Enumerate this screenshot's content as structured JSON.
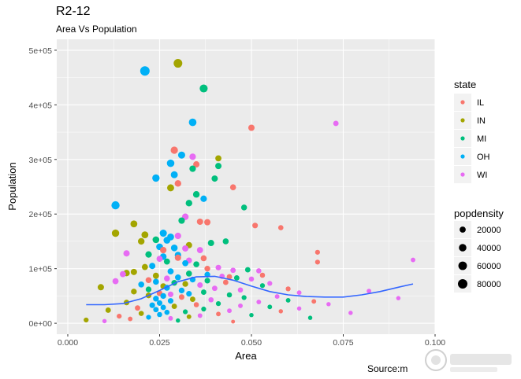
{
  "header": {
    "title": "R2-12",
    "subtitle": "Area Vs Population",
    "caption": "Source:m"
  },
  "chart_data": {
    "type": "scatter",
    "title": "R2-12",
    "subtitle": "Area Vs Population",
    "xlabel": "Area",
    "ylabel": "Population",
    "xlim": [
      -0.003,
      0.1
    ],
    "ylim": [
      -20000,
      520000
    ],
    "x_ticks": [
      0.0,
      0.025,
      0.05,
      0.075,
      0.1
    ],
    "x_tick_labels": [
      "0.000",
      "0.025",
      "0.050",
      "0.075",
      "0.100"
    ],
    "y_ticks": [
      0,
      100000,
      200000,
      300000,
      400000,
      500000
    ],
    "y_tick_labels": [
      "0e+00",
      "1e+05",
      "2e+05",
      "3e+05",
      "4e+05",
      "5e+05"
    ],
    "grid": true,
    "legend_color": {
      "title": "state",
      "placement": "right",
      "entries": [
        {
          "label": "IL",
          "color": "#F8766D"
        },
        {
          "label": "IN",
          "color": "#A3A500"
        },
        {
          "label": "MI",
          "color": "#00BF7D"
        },
        {
          "label": "OH",
          "color": "#00B0F6"
        },
        {
          "label": "WI",
          "color": "#E76BF3"
        }
      ]
    },
    "legend_size": {
      "title": "popdensity",
      "entries": [
        {
          "label": "20000",
          "value": 20000
        },
        {
          "label": "40000",
          "value": 40000
        },
        {
          "label": "60000",
          "value": 60000
        },
        {
          "label": "80000",
          "value": 80000
        }
      ]
    },
    "smooth": {
      "color": "#3366FF",
      "x": [
        0.005,
        0.01,
        0.015,
        0.02,
        0.025,
        0.03,
        0.035,
        0.04,
        0.045,
        0.05,
        0.055,
        0.06,
        0.065,
        0.07,
        0.075,
        0.08,
        0.085,
        0.09,
        0.094
      ],
      "y": [
        34000,
        34000,
        36000,
        45000,
        60000,
        76000,
        85000,
        86000,
        79000,
        68000,
        58000,
        52000,
        49000,
        48000,
        48000,
        52000,
        58000,
        66000,
        72000
      ]
    },
    "points": [
      {
        "state": "IN",
        "x": 0.03,
        "y": 476000,
        "d": 62000
      },
      {
        "state": "OH",
        "x": 0.021,
        "y": 462000,
        "d": 80000
      },
      {
        "state": "MI",
        "x": 0.037,
        "y": 430000,
        "d": 48000
      },
      {
        "state": "OH",
        "x": 0.034,
        "y": 368000,
        "d": 42000
      },
      {
        "state": "WI",
        "x": 0.073,
        "y": 366000,
        "d": 12000
      },
      {
        "state": "IL",
        "x": 0.05,
        "y": 358000,
        "d": 22000
      },
      {
        "state": "IL",
        "x": 0.029,
        "y": 317000,
        "d": 36000
      },
      {
        "state": "OH",
        "x": 0.031,
        "y": 308000,
        "d": 33000
      },
      {
        "state": "WI",
        "x": 0.034,
        "y": 305000,
        "d": 24000
      },
      {
        "state": "IN",
        "x": 0.041,
        "y": 302000,
        "d": 20000
      },
      {
        "state": "OH",
        "x": 0.028,
        "y": 293000,
        "d": 40000
      },
      {
        "state": "IL",
        "x": 0.035,
        "y": 291000,
        "d": 22000
      },
      {
        "state": "MI",
        "x": 0.041,
        "y": 288000,
        "d": 22000
      },
      {
        "state": "MI",
        "x": 0.034,
        "y": 283000,
        "d": 24000
      },
      {
        "state": "OH",
        "x": 0.029,
        "y": 272000,
        "d": 32000
      },
      {
        "state": "OH",
        "x": 0.024,
        "y": 266000,
        "d": 38000
      },
      {
        "state": "MI",
        "x": 0.04,
        "y": 265000,
        "d": 22000
      },
      {
        "state": "IL",
        "x": 0.03,
        "y": 256000,
        "d": 26000
      },
      {
        "state": "IL",
        "x": 0.045,
        "y": 249000,
        "d": 18000
      },
      {
        "state": "IN",
        "x": 0.028,
        "y": 248000,
        "d": 32000
      },
      {
        "state": "MI",
        "x": 0.035,
        "y": 236000,
        "d": 26000
      },
      {
        "state": "OH",
        "x": 0.037,
        "y": 228000,
        "d": 24000
      },
      {
        "state": "MI",
        "x": 0.033,
        "y": 220000,
        "d": 26000
      },
      {
        "state": "OH",
        "x": 0.013,
        "y": 216000,
        "d": 52000
      },
      {
        "state": "MI",
        "x": 0.048,
        "y": 212000,
        "d": 17000
      },
      {
        "state": "WI",
        "x": 0.032,
        "y": 195000,
        "d": 26000
      },
      {
        "state": "MI",
        "x": 0.031,
        "y": 188000,
        "d": 24000
      },
      {
        "state": "IL",
        "x": 0.036,
        "y": 186000,
        "d": 22000
      },
      {
        "state": "IL",
        "x": 0.038,
        "y": 185000,
        "d": 22000
      },
      {
        "state": "IN",
        "x": 0.018,
        "y": 182000,
        "d": 30000
      },
      {
        "state": "IL",
        "x": 0.051,
        "y": 179000,
        "d": 14000
      },
      {
        "state": "IL",
        "x": 0.058,
        "y": 175000,
        "d": 10000
      },
      {
        "state": "IN",
        "x": 0.013,
        "y": 165000,
        "d": 38000
      },
      {
        "state": "OH",
        "x": 0.026,
        "y": 165000,
        "d": 34000
      },
      {
        "state": "IN",
        "x": 0.021,
        "y": 162000,
        "d": 30000
      },
      {
        "state": "WI",
        "x": 0.03,
        "y": 160000,
        "d": 24000
      },
      {
        "state": "OH",
        "x": 0.028,
        "y": 158000,
        "d": 30000
      },
      {
        "state": "MI",
        "x": 0.024,
        "y": 153000,
        "d": 28000
      },
      {
        "state": "OH",
        "x": 0.027,
        "y": 152000,
        "d": 30000
      },
      {
        "state": "IN",
        "x": 0.02,
        "y": 150000,
        "d": 26000
      },
      {
        "state": "MI",
        "x": 0.043,
        "y": 150000,
        "d": 18000
      },
      {
        "state": "MI",
        "x": 0.039,
        "y": 147000,
        "d": 22000
      },
      {
        "state": "IN",
        "x": 0.033,
        "y": 143000,
        "d": 22000
      },
      {
        "state": "OH",
        "x": 0.025,
        "y": 140000,
        "d": 28000
      },
      {
        "state": "OH",
        "x": 0.029,
        "y": 138000,
        "d": 28000
      },
      {
        "state": "WI",
        "x": 0.032,
        "y": 137000,
        "d": 22000
      },
      {
        "state": "IL",
        "x": 0.026,
        "y": 134000,
        "d": 24000
      },
      {
        "state": "WI",
        "x": 0.036,
        "y": 134000,
        "d": 20000
      },
      {
        "state": "IL",
        "x": 0.068,
        "y": 130000,
        "d": 8000
      },
      {
        "state": "WI",
        "x": 0.016,
        "y": 128000,
        "d": 22000
      },
      {
        "state": "MI",
        "x": 0.022,
        "y": 126000,
        "d": 24000
      },
      {
        "state": "OH",
        "x": 0.03,
        "y": 125000,
        "d": 24000
      },
      {
        "state": "OH",
        "x": 0.026,
        "y": 122000,
        "d": 26000
      },
      {
        "state": "IL",
        "x": 0.03,
        "y": 120000,
        "d": 22000
      },
      {
        "state": "IL",
        "x": 0.037,
        "y": 119000,
        "d": 18000
      },
      {
        "state": "WI",
        "x": 0.025,
        "y": 118000,
        "d": 20000
      },
      {
        "state": "WI",
        "x": 0.094,
        "y": 116000,
        "d": 6000
      },
      {
        "state": "WI",
        "x": 0.033,
        "y": 115000,
        "d": 18000
      },
      {
        "state": "MI",
        "x": 0.027,
        "y": 113000,
        "d": 20000
      },
      {
        "state": "IL",
        "x": 0.068,
        "y": 112000,
        "d": 8000
      },
      {
        "state": "OH",
        "x": 0.032,
        "y": 110000,
        "d": 20000
      },
      {
        "state": "MI",
        "x": 0.035,
        "y": 108000,
        "d": 18000
      },
      {
        "state": "OH",
        "x": 0.023,
        "y": 105000,
        "d": 22000
      },
      {
        "state": "IN",
        "x": 0.021,
        "y": 103000,
        "d": 20000
      },
      {
        "state": "WI",
        "x": 0.041,
        "y": 102000,
        "d": 14000
      },
      {
        "state": "IL",
        "x": 0.038,
        "y": 100000,
        "d": 16000
      },
      {
        "state": "MI",
        "x": 0.049,
        "y": 98000,
        "d": 12000
      },
      {
        "state": "WI",
        "x": 0.045,
        "y": 97000,
        "d": 12000
      },
      {
        "state": "WI",
        "x": 0.052,
        "y": 96000,
        "d": 10000
      },
      {
        "state": "OH",
        "x": 0.028,
        "y": 95000,
        "d": 20000
      },
      {
        "state": "IN",
        "x": 0.018,
        "y": 94000,
        "d": 22000
      },
      {
        "state": "IN",
        "x": 0.016,
        "y": 92000,
        "d": 24000
      },
      {
        "state": "MI",
        "x": 0.033,
        "y": 91000,
        "d": 18000
      },
      {
        "state": "WI",
        "x": 0.015,
        "y": 90000,
        "d": 20000
      },
      {
        "state": "OH",
        "x": 0.038,
        "y": 89000,
        "d": 16000
      },
      {
        "state": "IL",
        "x": 0.053,
        "y": 88000,
        "d": 10000
      },
      {
        "state": "IN",
        "x": 0.024,
        "y": 87000,
        "d": 20000
      },
      {
        "state": "WI",
        "x": 0.042,
        "y": 86000,
        "d": 12000
      },
      {
        "state": "IL",
        "x": 0.044,
        "y": 85000,
        "d": 12000
      },
      {
        "state": "OH",
        "x": 0.03,
        "y": 84000,
        "d": 18000
      },
      {
        "state": "MI",
        "x": 0.046,
        "y": 83000,
        "d": 12000
      },
      {
        "state": "WI",
        "x": 0.027,
        "y": 82000,
        "d": 18000
      },
      {
        "state": "WI",
        "x": 0.05,
        "y": 81000,
        "d": 10000
      },
      {
        "state": "OH",
        "x": 0.034,
        "y": 80000,
        "d": 16000
      },
      {
        "state": "IL",
        "x": 0.022,
        "y": 79000,
        "d": 18000
      },
      {
        "state": "MI",
        "x": 0.038,
        "y": 78000,
        "d": 14000
      },
      {
        "state": "WI",
        "x": 0.013,
        "y": 77000,
        "d": 20000
      },
      {
        "state": "OH",
        "x": 0.024,
        "y": 76000,
        "d": 18000
      },
      {
        "state": "IL",
        "x": 0.043,
        "y": 75000,
        "d": 12000
      },
      {
        "state": "MI",
        "x": 0.029,
        "y": 74000,
        "d": 16000
      },
      {
        "state": "WI",
        "x": 0.055,
        "y": 73000,
        "d": 8000
      },
      {
        "state": "IN",
        "x": 0.032,
        "y": 72000,
        "d": 16000
      },
      {
        "state": "OH",
        "x": 0.02,
        "y": 71000,
        "d": 18000
      },
      {
        "state": "WI",
        "x": 0.036,
        "y": 70000,
        "d": 14000
      },
      {
        "state": "MI",
        "x": 0.053,
        "y": 69000,
        "d": 8000
      },
      {
        "state": "IN",
        "x": 0.026,
        "y": 68000,
        "d": 16000
      },
      {
        "state": "IN",
        "x": 0.009,
        "y": 66000,
        "d": 22000
      },
      {
        "state": "OH",
        "x": 0.027,
        "y": 65000,
        "d": 18000
      },
      {
        "state": "WI",
        "x": 0.04,
        "y": 64000,
        "d": 12000
      },
      {
        "state": "IL",
        "x": 0.06,
        "y": 63000,
        "d": 8000
      },
      {
        "state": "MI",
        "x": 0.022,
        "y": 62000,
        "d": 16000
      },
      {
        "state": "WI",
        "x": 0.047,
        "y": 61000,
        "d": 10000
      },
      {
        "state": "OH",
        "x": 0.031,
        "y": 60000,
        "d": 16000
      },
      {
        "state": "WI",
        "x": 0.082,
        "y": 59000,
        "d": 6000
      },
      {
        "state": "IN",
        "x": 0.018,
        "y": 58000,
        "d": 16000
      },
      {
        "state": "MI",
        "x": 0.037,
        "y": 57000,
        "d": 12000
      },
      {
        "state": "WI",
        "x": 0.063,
        "y": 56000,
        "d": 6000
      },
      {
        "state": "IL",
        "x": 0.025,
        "y": 55000,
        "d": 16000
      },
      {
        "state": "OH",
        "x": 0.033,
        "y": 54000,
        "d": 14000
      },
      {
        "state": "WI",
        "x": 0.028,
        "y": 53000,
        "d": 14000
      },
      {
        "state": "MI",
        "x": 0.044,
        "y": 52000,
        "d": 10000
      },
      {
        "state": "IN",
        "x": 0.022,
        "y": 51000,
        "d": 16000
      },
      {
        "state": "OH",
        "x": 0.026,
        "y": 50000,
        "d": 16000
      },
      {
        "state": "WI",
        "x": 0.057,
        "y": 49000,
        "d": 6000
      },
      {
        "state": "IL",
        "x": 0.031,
        "y": 48000,
        "d": 14000
      },
      {
        "state": "MI",
        "x": 0.048,
        "y": 47000,
        "d": 8000
      },
      {
        "state": "WI",
        "x": 0.09,
        "y": 46000,
        "d": 4000
      },
      {
        "state": "OH",
        "x": 0.024,
        "y": 45000,
        "d": 16000
      },
      {
        "state": "IN",
        "x": 0.034,
        "y": 44000,
        "d": 12000
      },
      {
        "state": "WI",
        "x": 0.039,
        "y": 43000,
        "d": 10000
      },
      {
        "state": "MI",
        "x": 0.06,
        "y": 42000,
        "d": 6000
      },
      {
        "state": "OH",
        "x": 0.028,
        "y": 41000,
        "d": 14000
      },
      {
        "state": "IL",
        "x": 0.067,
        "y": 40000,
        "d": 6000
      },
      {
        "state": "WI",
        "x": 0.052,
        "y": 39000,
        "d": 6000
      },
      {
        "state": "IN",
        "x": 0.016,
        "y": 38000,
        "d": 14000
      },
      {
        "state": "OH",
        "x": 0.025,
        "y": 37000,
        "d": 14000
      },
      {
        "state": "MI",
        "x": 0.041,
        "y": 36000,
        "d": 8000
      },
      {
        "state": "WI",
        "x": 0.071,
        "y": 35000,
        "d": 4000
      },
      {
        "state": "IL",
        "x": 0.035,
        "y": 34000,
        "d": 10000
      },
      {
        "state": "OH",
        "x": 0.023,
        "y": 33000,
        "d": 14000
      },
      {
        "state": "WI",
        "x": 0.047,
        "y": 32000,
        "d": 6000
      },
      {
        "state": "IN",
        "x": 0.029,
        "y": 31000,
        "d": 12000
      },
      {
        "state": "MI",
        "x": 0.055,
        "y": 30000,
        "d": 6000
      },
      {
        "state": "OH",
        "x": 0.026,
        "y": 29000,
        "d": 12000
      },
      {
        "state": "IL",
        "x": 0.019,
        "y": 28000,
        "d": 12000
      },
      {
        "state": "WI",
        "x": 0.063,
        "y": 27000,
        "d": 4000
      },
      {
        "state": "MI",
        "x": 0.037,
        "y": 26000,
        "d": 8000
      },
      {
        "state": "OH",
        "x": 0.024,
        "y": 25000,
        "d": 12000
      },
      {
        "state": "IN",
        "x": 0.011,
        "y": 24000,
        "d": 12000
      },
      {
        "state": "WI",
        "x": 0.044,
        "y": 23000,
        "d": 6000
      },
      {
        "state": "IL",
        "x": 0.058,
        "y": 22000,
        "d": 4000
      },
      {
        "state": "MI",
        "x": 0.032,
        "y": 21000,
        "d": 8000
      },
      {
        "state": "OH",
        "x": 0.027,
        "y": 20000,
        "d": 10000
      },
      {
        "state": "WI",
        "x": 0.077,
        "y": 19000,
        "d": 4000
      },
      {
        "state": "IN",
        "x": 0.02,
        "y": 18000,
        "d": 10000
      },
      {
        "state": "IL",
        "x": 0.041,
        "y": 17000,
        "d": 6000
      },
      {
        "state": "OH",
        "x": 0.025,
        "y": 16000,
        "d": 10000
      },
      {
        "state": "MI",
        "x": 0.05,
        "y": 15000,
        "d": 4000
      },
      {
        "state": "WI",
        "x": 0.036,
        "y": 14000,
        "d": 6000
      },
      {
        "state": "IL",
        "x": 0.014,
        "y": 13000,
        "d": 8000
      },
      {
        "state": "IN",
        "x": 0.033,
        "y": 12000,
        "d": 6000
      },
      {
        "state": "OH",
        "x": 0.022,
        "y": 11000,
        "d": 8000
      },
      {
        "state": "MI",
        "x": 0.066,
        "y": 10000,
        "d": 4000
      },
      {
        "state": "WI",
        "x": 0.028,
        "y": 9000,
        "d": 6000
      },
      {
        "state": "IL",
        "x": 0.017,
        "y": 8000,
        "d": 6000
      },
      {
        "state": "IN",
        "x": 0.005,
        "y": 6000,
        "d": 8000
      },
      {
        "state": "MI",
        "x": 0.03,
        "y": 5000,
        "d": 4000
      },
      {
        "state": "WI",
        "x": 0.01,
        "y": 4000,
        "d": 4000
      },
      {
        "state": "IL",
        "x": 0.045,
        "y": 3000,
        "d": 2000
      }
    ]
  }
}
